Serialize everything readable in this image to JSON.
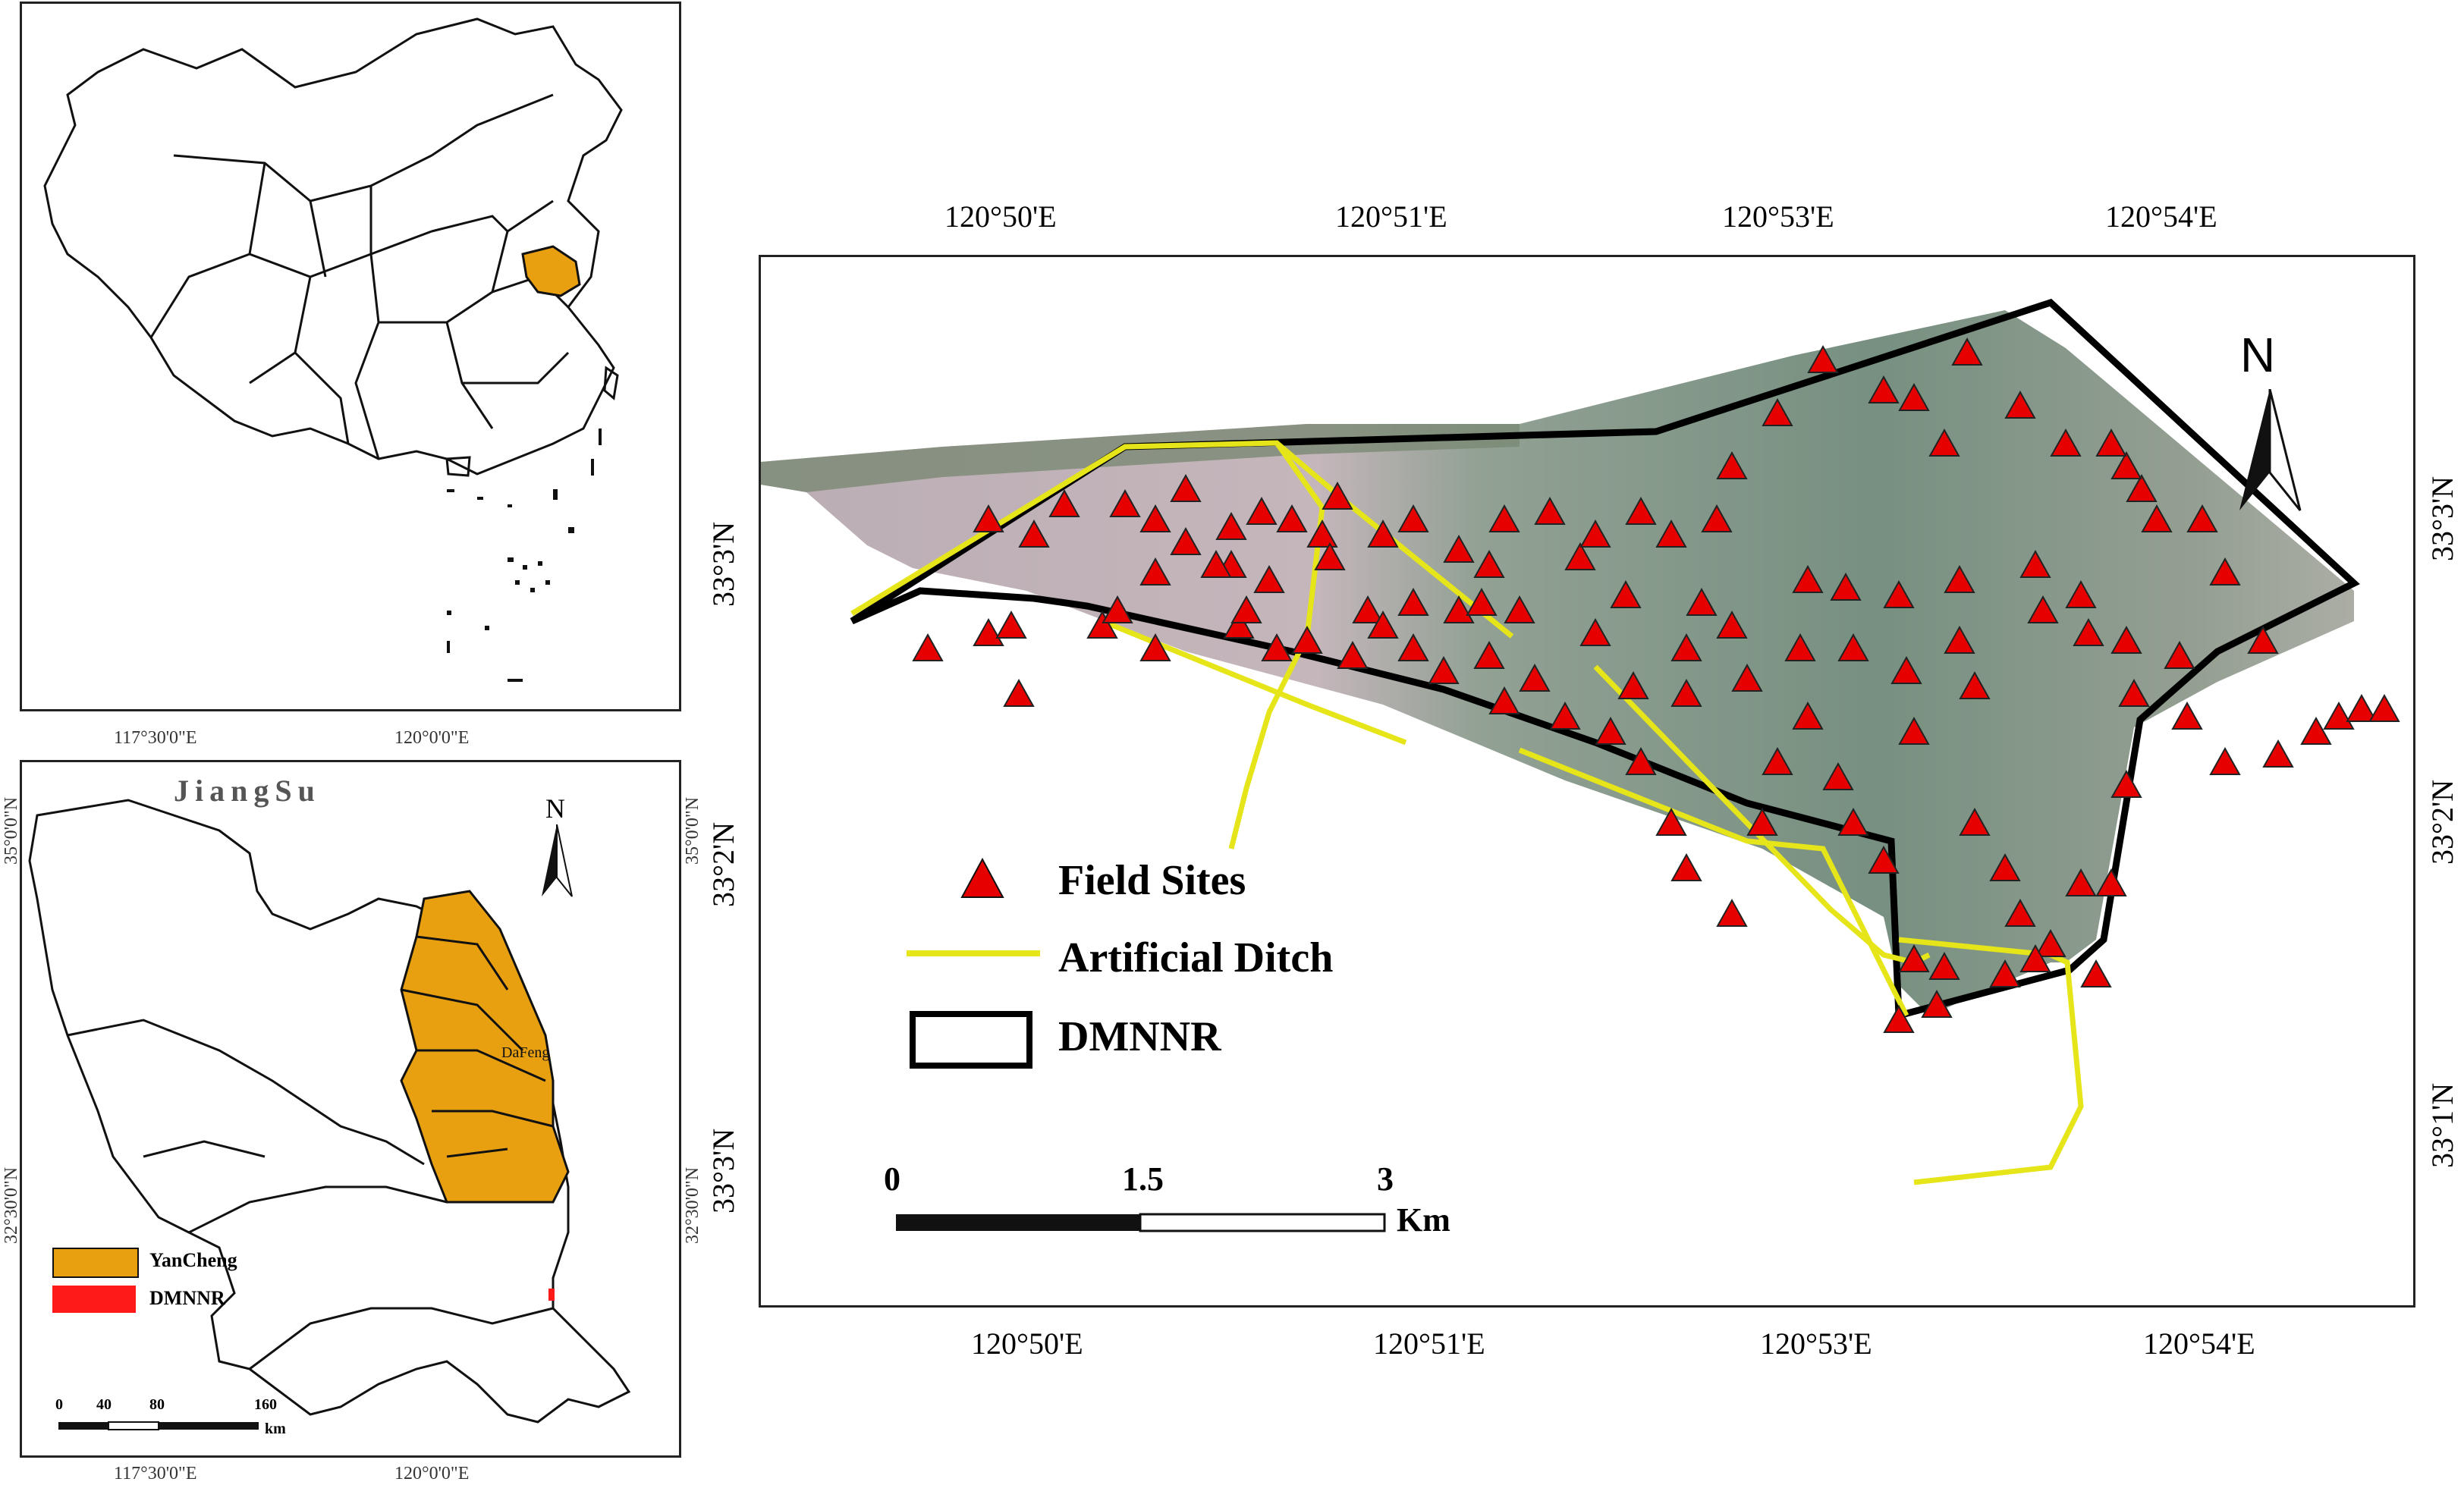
{
  "china_map": {
    "highlight_color": "#e8a010"
  },
  "jiangsu_map": {
    "province_label": "JiangSu",
    "city_label": "DaFeng",
    "north_label": "N",
    "legend": [
      {
        "label": "YanCheng",
        "color": "#e8a010"
      },
      {
        "label": "DMNNR",
        "color": "#ff1a1a"
      }
    ],
    "scale": {
      "ticks": [
        "0",
        "40",
        "80",
        "160"
      ],
      "unit": "km"
    },
    "lon_ticks": [
      "117°30'0\"E",
      "120°0'0\"E"
    ],
    "lat_ticks": [
      "35°0'0\"N",
      "32°30'0\"N"
    ]
  },
  "main_map": {
    "north_label": "N",
    "lon_ticks": [
      "120°50'E",
      "120°51'E",
      "120°53'E",
      "120°54'E"
    ],
    "lat_ticks": [
      "33°3'N",
      "33°2'N",
      "33°1'N"
    ],
    "legend": [
      {
        "label": "Field Sites",
        "symbol": "red-triangle",
        "color": "#e60000"
      },
      {
        "label": "Artificial Ditch",
        "symbol": "yellow-line",
        "color": "#e5e51a"
      },
      {
        "label": "DMNNR",
        "symbol": "black-outline-box",
        "color": "#000000"
      }
    ],
    "scale": {
      "ticks": [
        "0",
        "1.5",
        "3"
      ],
      "unit": "Km"
    }
  }
}
